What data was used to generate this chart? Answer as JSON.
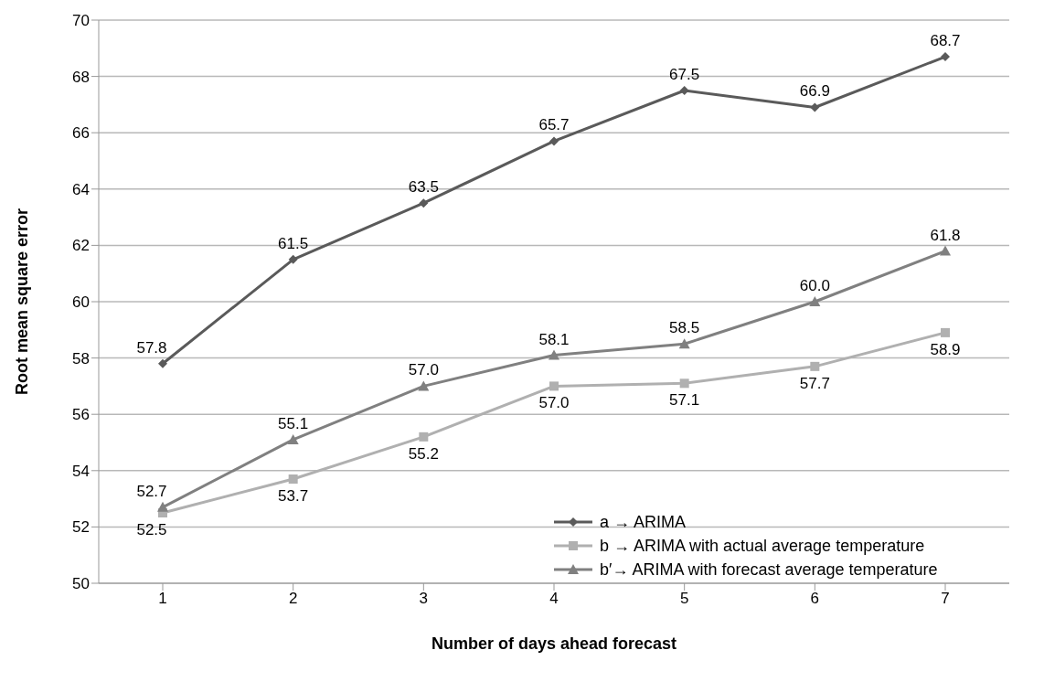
{
  "chart_data": {
    "type": "line",
    "xlabel": "Number of days ahead forecast",
    "ylabel": "Root mean square error",
    "categories": [
      "1",
      "2",
      "3",
      "4",
      "5",
      "6",
      "7"
    ],
    "series": [
      {
        "name": "a → ARIMA",
        "color": "#5a5a5a",
        "marker": "diamond",
        "values": [
          57.8,
          61.5,
          63.5,
          65.7,
          67.5,
          66.9,
          68.7
        ],
        "value_labels": [
          "57.8",
          "61.5",
          "63.5",
          "65.7",
          "67.5",
          "66.9",
          "68.7"
        ]
      },
      {
        "name": "b → ARIMA with actual average temperature",
        "color": "#b0b0b0",
        "marker": "square",
        "values": [
          52.5,
          53.7,
          55.2,
          57.0,
          57.1,
          57.7,
          58.9
        ],
        "value_labels": [
          "52.5",
          "53.7",
          "55.2",
          "57.0",
          "57.1",
          "57.7",
          "58.9"
        ]
      },
      {
        "name": "b′→ ARIMA with forecast average temperature",
        "color": "#808080",
        "marker": "triangle",
        "values": [
          52.7,
          55.1,
          57.0,
          58.1,
          58.5,
          60.0,
          61.8
        ],
        "value_labels": [
          "52.7",
          "55.1",
          "57.0",
          "58.1",
          "58.5",
          "60.0",
          "61.8"
        ]
      }
    ],
    "ylim": [
      50,
      70
    ],
    "yticks": [
      50,
      52,
      54,
      56,
      58,
      60,
      62,
      64,
      66,
      68,
      70
    ],
    "grid": "y",
    "legend": "bottom right",
    "line_style": "solid"
  }
}
